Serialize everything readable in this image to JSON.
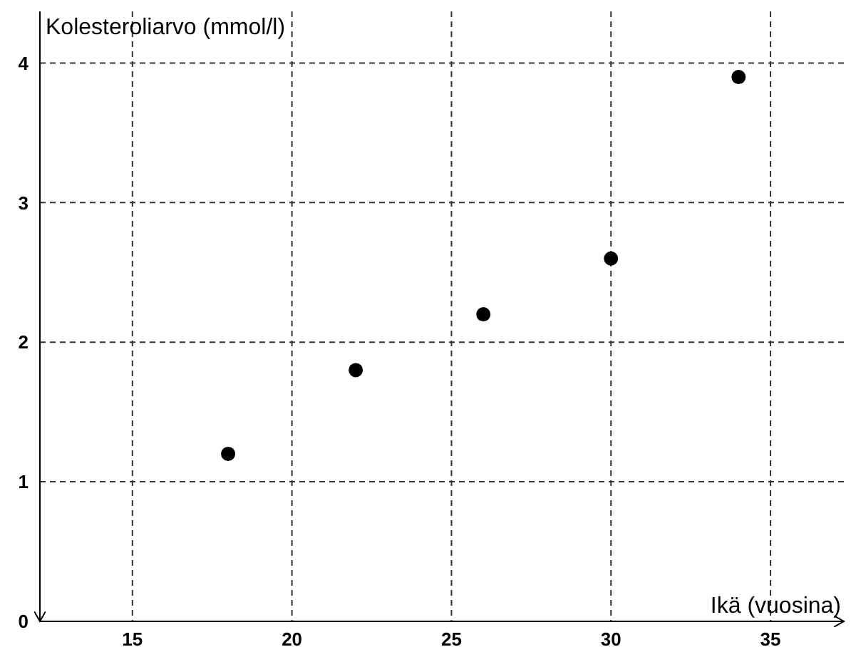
{
  "chart_data": {
    "type": "scatter",
    "xlabel": "Ikä (vuosina)",
    "ylabel": "Kolesteroliarvo (mmol/l)",
    "x": [
      18,
      22,
      26,
      30,
      34
    ],
    "values": [
      1.2,
      1.8,
      2.2,
      2.6,
      3.9
    ],
    "color": "#000000",
    "marker": "circle",
    "xlim": [
      12.1,
      37.3
    ],
    "xticks": [
      15,
      20,
      25,
      30,
      35
    ],
    "ylim": [
      0,
      4.37
    ],
    "yticks": [
      0,
      1,
      2,
      3,
      4
    ],
    "grid": true
  }
}
